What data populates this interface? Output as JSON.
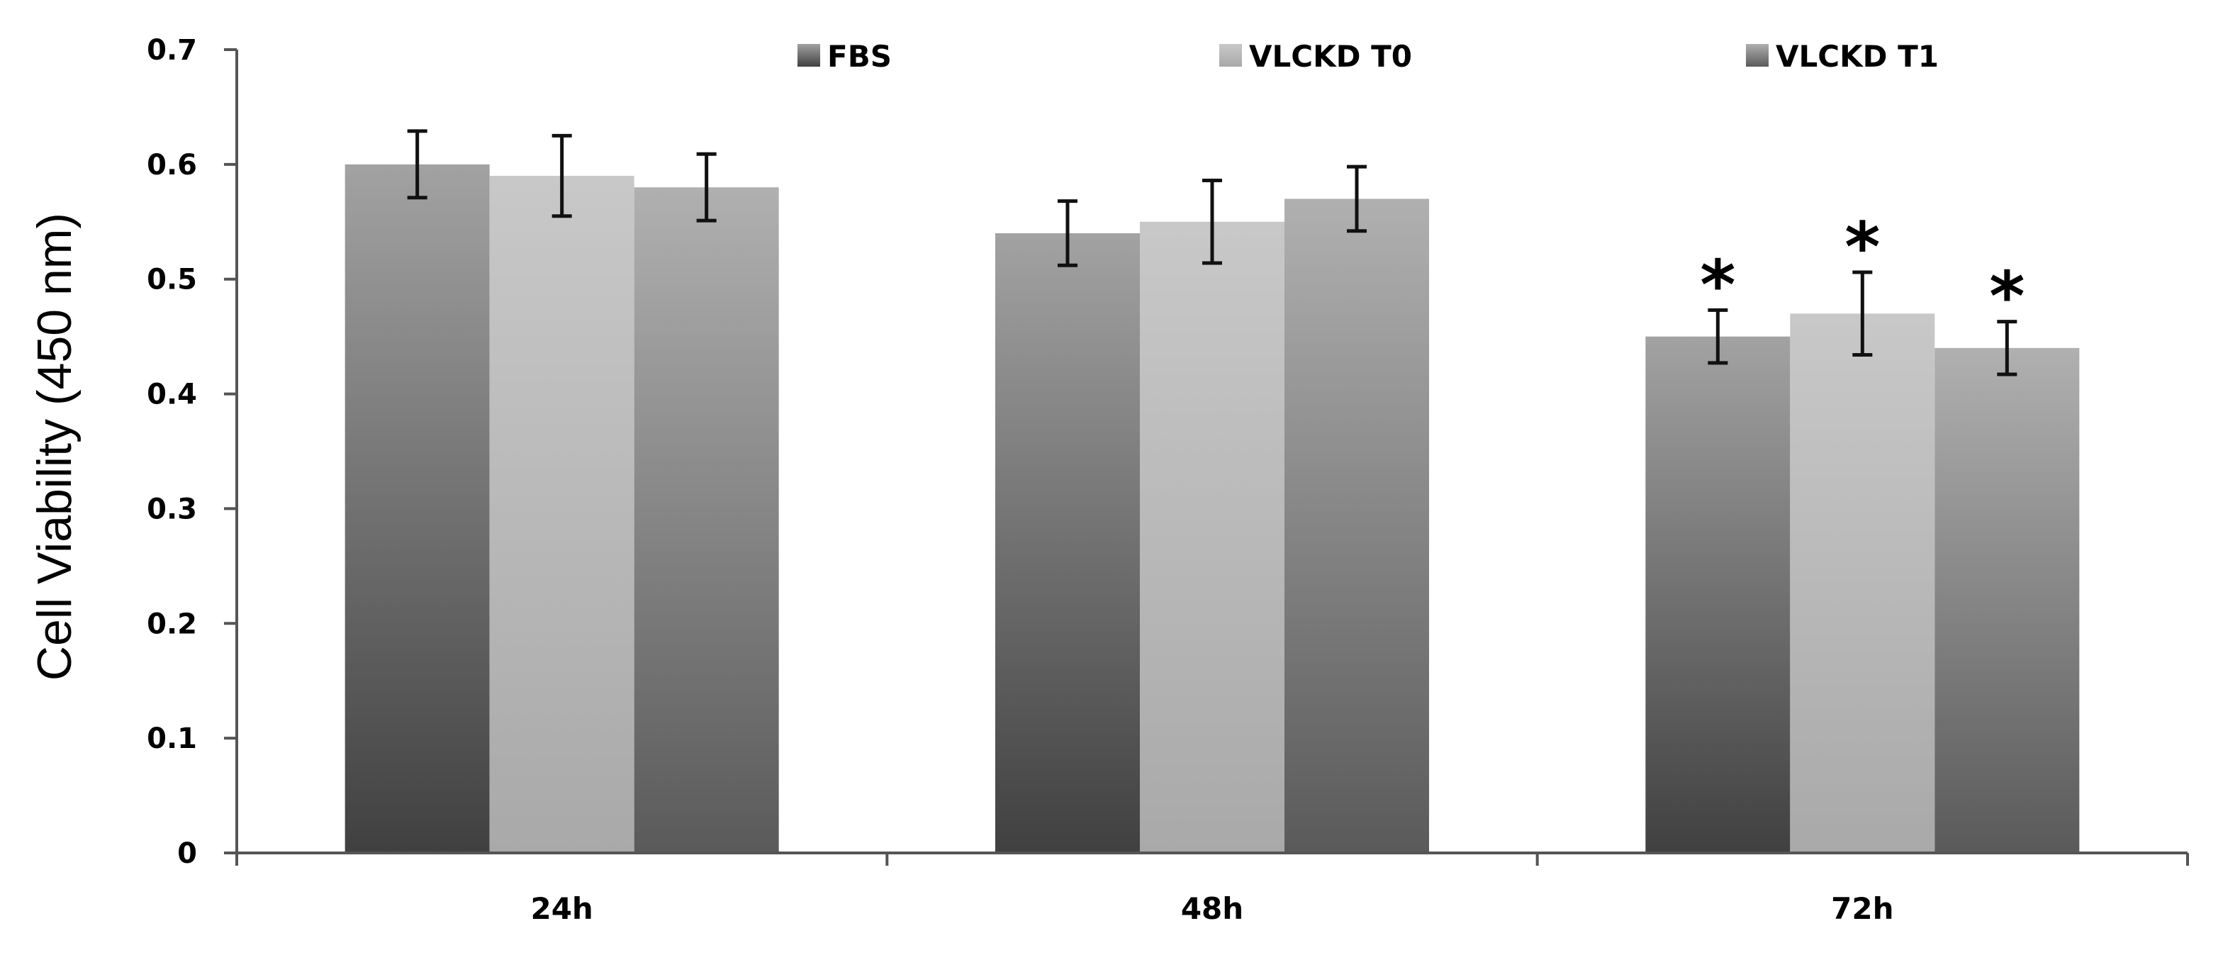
{
  "chart_data": {
    "type": "bar",
    "title": "",
    "xlabel": "",
    "ylabel": "Cell Viability (450 nm)",
    "categories": [
      "24h",
      "48h",
      "72h"
    ],
    "ylim": [
      0,
      0.7
    ],
    "yticks": [
      0,
      0.1,
      0.2,
      0.3,
      0.4,
      0.5,
      0.6,
      0.7
    ],
    "ytick_labels": [
      "0",
      "0.1",
      "0.2",
      "0.3",
      "0.4",
      "0.5",
      "0.6",
      "0.7"
    ],
    "legend_position": "top",
    "grid": false,
    "series": [
      {
        "name": "FBS",
        "values": [
          0.6,
          0.54,
          0.45
        ],
        "errors": [
          0.029,
          0.028,
          0.023
        ],
        "significant": [
          false,
          false,
          true
        ],
        "color_top": "#a2a2a2",
        "color_bottom": "#404040"
      },
      {
        "name": "VLCKD T0",
        "values": [
          0.59,
          0.55,
          0.47
        ],
        "errors": [
          0.035,
          0.036,
          0.036
        ],
        "significant": [
          false,
          false,
          true
        ],
        "color_top": "#c8c8c8",
        "color_bottom": "#a9a9a9"
      },
      {
        "name": "VLCKD T1",
        "values": [
          0.58,
          0.57,
          0.44
        ],
        "errors": [
          0.029,
          0.028,
          0.023
        ],
        "significant": [
          false,
          false,
          true
        ],
        "color_top": "#b0b0b0",
        "color_bottom": "#5a5a5a"
      }
    ],
    "significance_marker": "*"
  }
}
